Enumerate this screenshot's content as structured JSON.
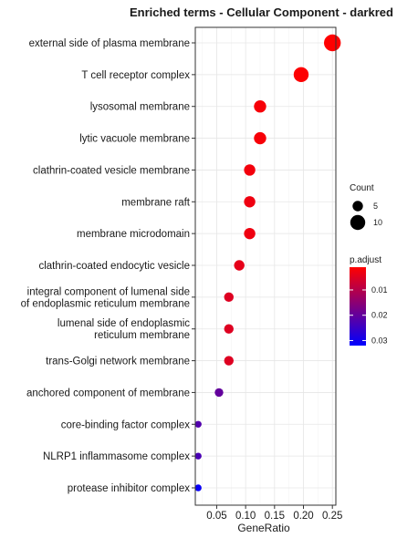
{
  "chart_data": {
    "type": "scatter",
    "title": "Enriched terms - Cellular Component - darkred",
    "xlabel": "GeneRatio",
    "ylabel": "",
    "xlim": [
      0.013,
      0.256
    ],
    "x_ticks": [
      0.05,
      0.1,
      0.15,
      0.2,
      0.25
    ],
    "x_tick_labels": [
      "0.05",
      "0.10",
      "0.15",
      "0.20",
      "0.25"
    ],
    "grid": true,
    "legend_position": "right",
    "terms": [
      {
        "label": [
          "external side of plasma membrane"
        ],
        "gene_ratio": 0.25,
        "count": 12,
        "p_adjust": 0.001
      },
      {
        "label": [
          "T cell receptor complex"
        ],
        "gene_ratio": 0.196,
        "count": 10,
        "p_adjust": 0.0012
      },
      {
        "label": [
          "lysosomal membrane"
        ],
        "gene_ratio": 0.125,
        "count": 7,
        "p_adjust": 0.002
      },
      {
        "label": [
          "lytic vacuole membrane"
        ],
        "gene_ratio": 0.125,
        "count": 7,
        "p_adjust": 0.002
      },
      {
        "label": [
          "clathrin-coated vesicle membrane"
        ],
        "gene_ratio": 0.107,
        "count": 6,
        "p_adjust": 0.0025
      },
      {
        "label": [
          "membrane raft"
        ],
        "gene_ratio": 0.107,
        "count": 6,
        "p_adjust": 0.003
      },
      {
        "label": [
          "membrane microdomain"
        ],
        "gene_ratio": 0.107,
        "count": 6,
        "p_adjust": 0.003
      },
      {
        "label": [
          "clathrin-coated endocytic vesicle"
        ],
        "gene_ratio": 0.089,
        "count": 5,
        "p_adjust": 0.004
      },
      {
        "label": [
          "integral component of lumenal side",
          "of endoplasmic reticulum membrane"
        ],
        "gene_ratio": 0.071,
        "count": 4,
        "p_adjust": 0.005
      },
      {
        "label": [
          "lumenal side of endoplasmic",
          "reticulum membrane"
        ],
        "gene_ratio": 0.071,
        "count": 4,
        "p_adjust": 0.005
      },
      {
        "label": [
          "trans-Golgi network membrane"
        ],
        "gene_ratio": 0.071,
        "count": 4,
        "p_adjust": 0.005
      },
      {
        "label": [
          "anchored component of membrane"
        ],
        "gene_ratio": 0.054,
        "count": 3,
        "p_adjust": 0.02
      },
      {
        "label": [
          "core-binding factor complex"
        ],
        "gene_ratio": 0.018,
        "count": 1,
        "p_adjust": 0.022
      },
      {
        "label": [
          "NLRP1 inflammasome complex"
        ],
        "gene_ratio": 0.018,
        "count": 1,
        "p_adjust": 0.023
      },
      {
        "label": [
          "protease inhibitor complex"
        ],
        "gene_ratio": 0.018,
        "count": 1,
        "p_adjust": 0.031
      }
    ],
    "size_legend": {
      "title": "Count",
      "entries": [
        {
          "value": 5,
          "label": "5"
        },
        {
          "value": 10,
          "label": "10"
        }
      ]
    },
    "color_legend": {
      "title": "p.adjust",
      "range": [
        0.001,
        0.032
      ],
      "ticks": [
        0.01,
        0.02,
        0.03
      ],
      "tick_labels": [
        "0.01",
        "0.02",
        "0.03"
      ],
      "low_color": "#ff0000",
      "high_color": "#0000ff"
    }
  }
}
